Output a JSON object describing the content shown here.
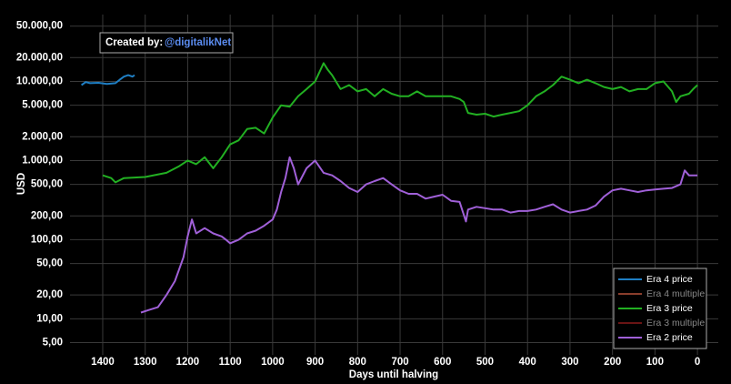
{
  "chart_data": {
    "type": "line",
    "x_label": "Days until halving",
    "y_label": "USD",
    "annotation": {
      "text": "Created by:",
      "handle": "@digitalikNet"
    },
    "log_y": true,
    "grid": true,
    "legend": "lower right",
    "xlim": [
      1477,
      -49
    ],
    "ylim": [
      3.5,
      70000
    ],
    "xticks": [
      1400,
      1300,
      1200,
      1100,
      1000,
      900,
      800,
      700,
      600,
      500,
      400,
      300,
      200,
      100,
      0
    ],
    "yticks": [
      {
        "value": 5,
        "label": "5,00"
      },
      {
        "value": 10,
        "label": "10,00"
      },
      {
        "value": 20,
        "label": "20,00"
      },
      {
        "value": 50,
        "label": "50,00"
      },
      {
        "value": 100,
        "label": "100,00"
      },
      {
        "value": 200,
        "label": "200,00"
      },
      {
        "value": 500,
        "label": "500,00"
      },
      {
        "value": 1000,
        "label": "1.000,00"
      },
      {
        "value": 2000,
        "label": "2.000,00"
      },
      {
        "value": 5000,
        "label": "5.000,00"
      },
      {
        "value": 10000,
        "label": "10.000,00"
      },
      {
        "value": 20000,
        "label": "20.000,00"
      },
      {
        "value": 50000,
        "label": "50.000,00"
      }
    ],
    "series": [
      {
        "name": "Era 4 price",
        "color": "#1f7fc4",
        "visible": true,
        "x": [
          1450,
          1440,
          1430,
          1410,
          1390,
          1370,
          1360,
          1350,
          1340,
          1330,
          1325
        ],
        "values": [
          9000,
          9800,
          9500,
          9600,
          9300,
          9500,
          10500,
          11500,
          12000,
          11500,
          12000
        ]
      },
      {
        "name": "Era 4 multiple",
        "color": "#8a3e2c",
        "visible": false,
        "x": [],
        "values": []
      },
      {
        "name": "Era 3 price",
        "color": "#22b022",
        "visible": true,
        "x": [
          1400,
          1380,
          1370,
          1350,
          1300,
          1250,
          1220,
          1200,
          1180,
          1160,
          1140,
          1120,
          1100,
          1080,
          1060,
          1040,
          1020,
          1000,
          980,
          960,
          940,
          920,
          900,
          880,
          870,
          860,
          840,
          820,
          800,
          780,
          760,
          740,
          720,
          700,
          680,
          660,
          640,
          620,
          600,
          580,
          560,
          550,
          540,
          520,
          500,
          480,
          460,
          440,
          420,
          400,
          380,
          360,
          340,
          320,
          300,
          280,
          260,
          240,
          220,
          200,
          180,
          160,
          140,
          120,
          100,
          80,
          60,
          50,
          40,
          20,
          10,
          0
        ],
        "values": [
          650,
          600,
          530,
          600,
          620,
          700,
          850,
          1000,
          900,
          1100,
          800,
          1100,
          1600,
          1800,
          2500,
          2600,
          2200,
          3500,
          5000,
          4800,
          6500,
          8000,
          10000,
          17000,
          14000,
          12000,
          8000,
          9000,
          7500,
          8000,
          6500,
          8000,
          7000,
          6500,
          6500,
          7500,
          6500,
          6500,
          6500,
          6500,
          6000,
          5500,
          4000,
          3800,
          3900,
          3600,
          3800,
          4000,
          4200,
          5000,
          6500,
          7500,
          9000,
          11500,
          10500,
          9500,
          10500,
          9500,
          8500,
          8000,
          8500,
          7500,
          8000,
          8000,
          9500,
          10000,
          7500,
          5500,
          6500,
          7000,
          8000,
          9000
        ]
      },
      {
        "name": "Era 3 multiple",
        "color": "#6a1414",
        "visible": false,
        "x": [],
        "values": []
      },
      {
        "name": "Era 2 price",
        "color": "#a060d8",
        "visible": true,
        "x": [
          1310,
          1290,
          1270,
          1250,
          1230,
          1210,
          1200,
          1190,
          1180,
          1160,
          1140,
          1120,
          1110,
          1100,
          1080,
          1060,
          1040,
          1020,
          1000,
          990,
          980,
          970,
          960,
          950,
          940,
          920,
          900,
          880,
          860,
          840,
          820,
          800,
          780,
          760,
          740,
          720,
          700,
          680,
          660,
          640,
          620,
          600,
          580,
          560,
          545,
          540,
          520,
          500,
          480,
          460,
          440,
          420,
          400,
          380,
          360,
          340,
          320,
          300,
          280,
          260,
          240,
          220,
          200,
          180,
          160,
          140,
          120,
          100,
          80,
          60,
          40,
          30,
          20,
          0
        ],
        "values": [
          12,
          13,
          14,
          20,
          30,
          60,
          110,
          180,
          120,
          140,
          120,
          110,
          100,
          90,
          100,
          120,
          130,
          150,
          180,
          240,
          400,
          600,
          1100,
          800,
          500,
          800,
          1000,
          700,
          650,
          550,
          450,
          400,
          500,
          550,
          600,
          500,
          420,
          380,
          380,
          330,
          350,
          370,
          310,
          300,
          170,
          240,
          260,
          250,
          240,
          240,
          220,
          230,
          230,
          240,
          260,
          280,
          240,
          220,
          230,
          240,
          270,
          350,
          420,
          440,
          420,
          400,
          420,
          430,
          440,
          450,
          500,
          750,
          650,
          650
        ]
      }
    ]
  }
}
